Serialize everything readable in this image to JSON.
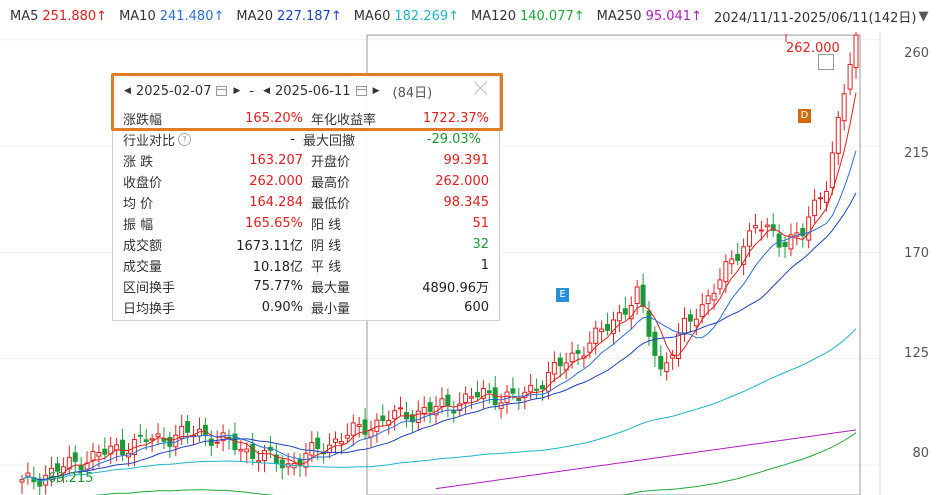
{
  "ma_bar": {
    "items": [
      {
        "label": "MA5",
        "value": "251.880",
        "arrow": "↑",
        "color": "#e02020"
      },
      {
        "label": "MA10",
        "value": "241.480",
        "arrow": "↑",
        "color": "#2a6fd6"
      },
      {
        "label": "MA20",
        "value": "227.187",
        "arrow": "↑",
        "color": "#1f3fbf"
      },
      {
        "label": "MA60",
        "value": "182.269",
        "arrow": "↑",
        "color": "#22b5c8"
      },
      {
        "label": "MA120",
        "value": "140.077",
        "arrow": "↑",
        "color": "#22a83a"
      },
      {
        "label": "MA250",
        "value": "95.041",
        "arrow": "↑",
        "color": "#b020c0"
      }
    ],
    "range": "2024/11/11-2025/06/11(142日)",
    "range_arrow": "▼"
  },
  "chart": {
    "y_ticks": [
      "260",
      "215",
      "170",
      "125",
      "80"
    ],
    "high_label": "262.000",
    "low_label": "69.215",
    "tag_e": "E",
    "tag_d": "D",
    "colors": {
      "up": "#e02020",
      "down": "#1c9a3a",
      "ma5": "#e02020",
      "ma10": "#2a6fd6",
      "ma20": "#1f3fbf",
      "ma60": "#22b5c8",
      "ma120": "#22a83a",
      "ma250": "#b020c0",
      "tag_e": "#2a8fd6",
      "tag_d": "#d06a10"
    }
  },
  "chart_data": {
    "type": "candlestick",
    "y_range": [
      69,
      265
    ],
    "start_price": 69.215,
    "end_price": 262.0
  },
  "panel": {
    "start_date": "2025-02-07",
    "end_date": "2025-06-11",
    "separator": "-",
    "days": "(84日)",
    "rows": [
      {
        "k1": "涨跌幅",
        "v1": "165.20%",
        "c1": "red",
        "k2": "年化收益率",
        "v2": "1722.37%",
        "c2": "red"
      },
      {
        "k1": "行业对比",
        "v1": "-",
        "c1": "black",
        "k2": "最大回撤",
        "v2": "-29.03%",
        "c2": "green",
        "q": "?"
      },
      {
        "k1": "涨  跌",
        "v1": "163.207",
        "c1": "red",
        "k2": "开盘价",
        "v2": "99.391",
        "c2": "red"
      },
      {
        "k1": "收盘价",
        "v1": "262.000",
        "c1": "red",
        "k2": "最高价",
        "v2": "262.000",
        "c2": "red"
      },
      {
        "k1": "均  价",
        "v1": "164.284",
        "c1": "red",
        "k2": "最低价",
        "v2": "98.345",
        "c2": "red"
      },
      {
        "k1": "振  幅",
        "v1": "165.65%",
        "c1": "red",
        "k2": "阳  线",
        "v2": "51",
        "c2": "red"
      },
      {
        "k1": "成交额",
        "v1": "1673.11亿",
        "c1": "black",
        "k2": "阴  线",
        "v2": "32",
        "c2": "green"
      },
      {
        "k1": "成交量",
        "v1": "10.18亿",
        "c1": "black",
        "k2": "平  线",
        "v2": "1",
        "c2": "black"
      },
      {
        "k1": "区间换手",
        "v1": "75.77%",
        "c1": "black",
        "k2": "最大量",
        "v2": "4890.96万",
        "c2": "black"
      },
      {
        "k1": "日均换手",
        "v1": "0.90%",
        "c1": "black",
        "k2": "最小量",
        "v2": "600",
        "c2": "black"
      }
    ]
  }
}
